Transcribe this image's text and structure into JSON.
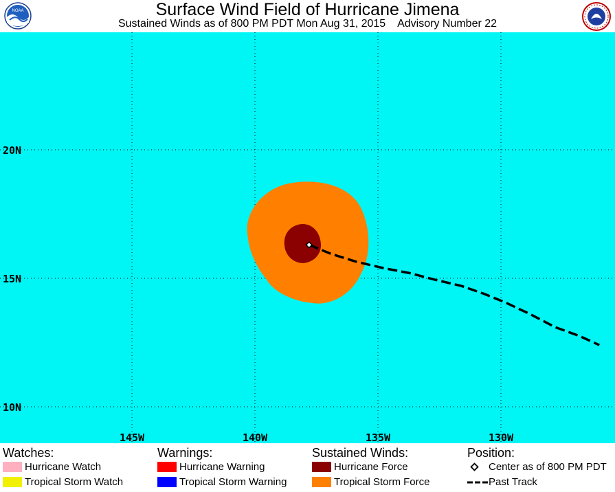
{
  "header": {
    "title": "Surface Wind Field of Hurricane Jimena",
    "subtitle": "Sustained Winds as of 800 PM PDT Mon Aug 31, 2015    Advisory Number 22",
    "left_logo": "noaa-logo",
    "right_logo": "nws-logo"
  },
  "map": {
    "colors": {
      "ocean": "#00f5f5",
      "hurricane_force": "#8b0000",
      "tropical_storm_force": "#ff8000",
      "grid": "#000000"
    },
    "lat_labels": [
      "20N",
      "15N",
      "10N"
    ],
    "lon_labels": [
      "145W",
      "140W",
      "135W",
      "130W"
    ],
    "center": {
      "lon": -137.8,
      "lat": 16.3
    },
    "past_track": [
      [
        -137.8,
        16.3
      ],
      [
        -136.9,
        15.95
      ],
      [
        -135.9,
        15.65
      ],
      [
        -134.8,
        15.4
      ],
      [
        -133.7,
        15.2
      ],
      [
        -132.7,
        14.95
      ],
      [
        -131.6,
        14.7
      ],
      [
        -130.7,
        14.4
      ],
      [
        -129.8,
        14.05
      ],
      [
        -128.8,
        13.6
      ],
      [
        -127.8,
        13.1
      ],
      [
        -126.8,
        12.75
      ],
      [
        -126.0,
        12.4
      ]
    ]
  },
  "legend": {
    "watches": {
      "heading": "Watches:",
      "items": [
        {
          "label": "Hurricane Watch",
          "color": "#ffb0c0"
        },
        {
          "label": "Tropical Storm Watch",
          "color": "#f0f000"
        }
      ]
    },
    "warnings": {
      "heading": "Warnings:",
      "items": [
        {
          "label": "Hurricane Warning",
          "color": "#ff0000"
        },
        {
          "label": "Tropical Storm Warning",
          "color": "#0000ff"
        }
      ]
    },
    "winds": {
      "heading": "Sustained Winds:",
      "items": [
        {
          "label": "Hurricane Force",
          "color": "#8b0000"
        },
        {
          "label": "Tropical Storm Force",
          "color": "#ff8000"
        }
      ]
    },
    "position": {
      "heading": "Position:",
      "center_label": "Center as of 800 PM PDT",
      "track_label": "Past Track"
    }
  }
}
